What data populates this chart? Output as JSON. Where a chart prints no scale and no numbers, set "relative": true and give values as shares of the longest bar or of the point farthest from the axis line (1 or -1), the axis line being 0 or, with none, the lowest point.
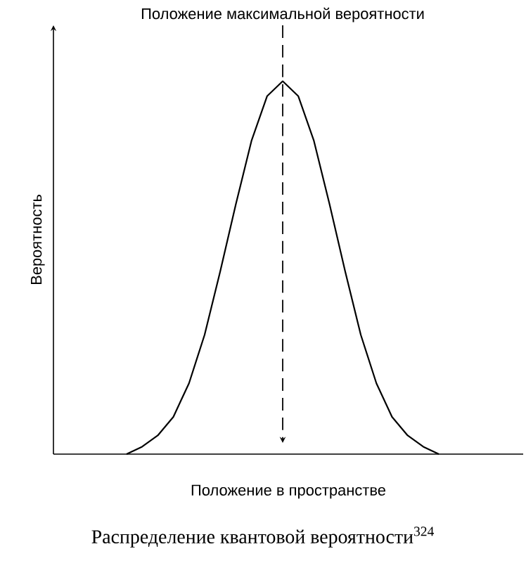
{
  "chart_data": {
    "type": "line",
    "relative": true,
    "title": "Распределение квантовой вероятности$^{324}$",
    "xlabel": "Положение в пространстве",
    "ylabel": "Вероятность",
    "categories": [
      null,
      null,
      null,
      null,
      null,
      null,
      null,
      null,
      null,
      null,
      null,
      null,
      null,
      null,
      null,
      null,
      null,
      null,
      null,
      null,
      null
    ],
    "series": [
      {
        "color": "#000000",
        "values": [
          0,
          0.02,
          0.05,
          0.1,
          0.19,
          0.32,
          0.49,
          0.67,
          0.84,
          0.96,
          1,
          0.96,
          0.84,
          0.67,
          0.49,
          0.32,
          0.19,
          0.1,
          0.05,
          0.02,
          0
        ]
      }
    ],
    "annotations": [
      "Положение максимальной вероятности"
    ],
    "line_style": "solid",
    "marker": "none"
  }
}
